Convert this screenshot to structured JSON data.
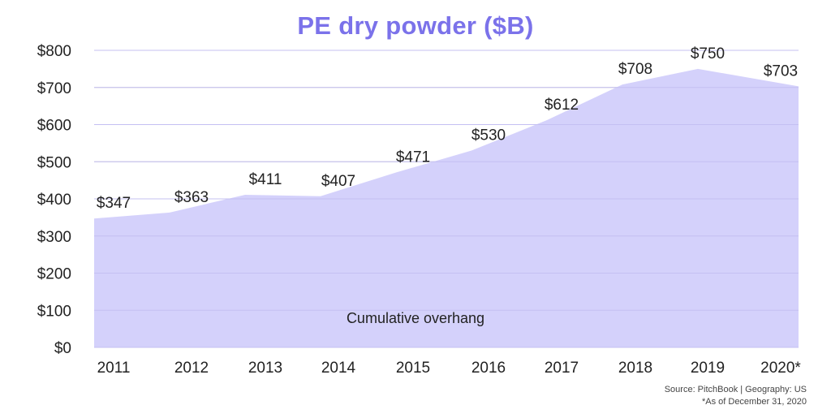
{
  "colors": {
    "title": "#7b72ea",
    "area_fill": "#d4d1fb",
    "grid": "#c9c9c9",
    "text": "#222222"
  },
  "chart_data": {
    "type": "area",
    "title": "PE dry powder ($B)",
    "categories": [
      "2011",
      "2012",
      "2013",
      "2014",
      "2015",
      "2016",
      "2017",
      "2018",
      "2019",
      "2020*"
    ],
    "series": [
      {
        "name": "",
        "values": [
          347,
          363,
          411,
          407,
          471,
          530,
          612,
          708,
          750,
          703
        ],
        "labels": [
          "$347",
          "$363",
          "$411",
          "$407",
          "$471",
          "$530",
          "$612",
          "$708",
          "$750",
          "$703"
        ]
      }
    ],
    "ylim": [
      0,
      800
    ],
    "yticks": [
      0,
      100,
      200,
      300,
      400,
      500,
      600,
      700,
      800
    ],
    "ytick_labels": [
      "$0",
      "$100",
      "$200",
      "$300",
      "$400",
      "$500",
      "$600",
      "$700",
      "$800"
    ],
    "xlabel": "",
    "ylabel": "",
    "grid": true,
    "annotation": "Cumulative overhang"
  },
  "footer": {
    "source": "Source: PitchBook | Geography: US",
    "note": "*As of December 31, 2020"
  }
}
